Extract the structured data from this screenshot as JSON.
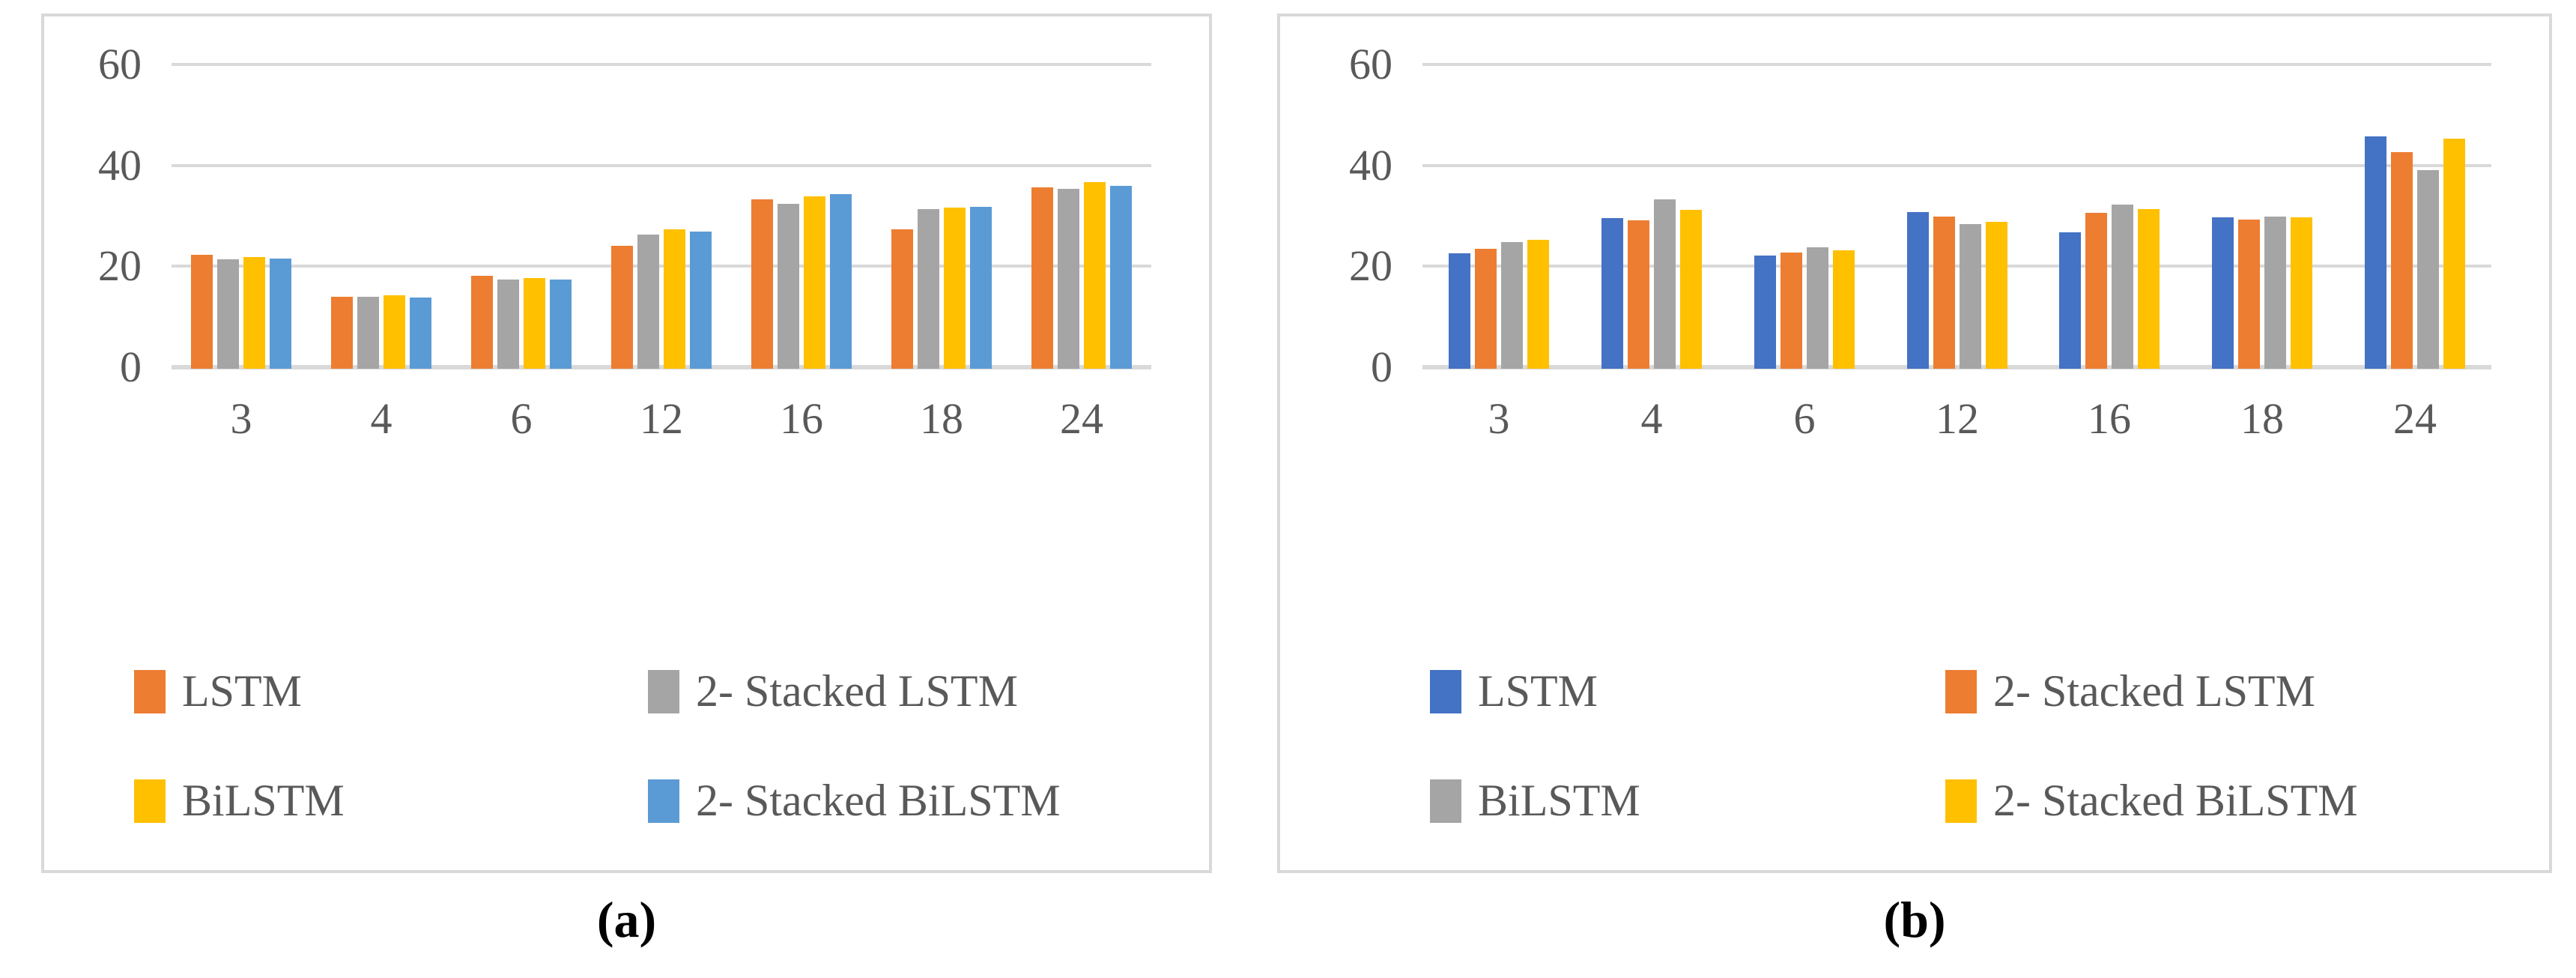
{
  "figure": {
    "background": "#FFFFFF",
    "captions": [
      "(a)",
      "(b)"
    ]
  },
  "chart_data": [
    {
      "type": "bar",
      "caption": "(a)",
      "title": "",
      "xlabel": "",
      "ylabel": "",
      "categories": [
        "3",
        "4",
        "6",
        "12",
        "16",
        "18",
        "24"
      ],
      "series": [
        {
          "name": "LSTM",
          "color": "#ED7D31",
          "values": [
            22.5,
            14.3,
            18.4,
            24.4,
            33.6,
            27.6,
            35.9
          ]
        },
        {
          "name": "2- Stacked LSTM",
          "color": "#A5A5A5",
          "values": [
            21.7,
            14.3,
            17.6,
            26.6,
            32.6,
            31.6,
            35.7
          ]
        },
        {
          "name": "BiLSTM",
          "color": "#FFC000",
          "values": [
            22.2,
            14.6,
            18.0,
            27.6,
            34.2,
            31.9,
            37.0
          ]
        },
        {
          "name": "2- Stacked BiLSTM",
          "color": "#5B9BD5",
          "values": [
            21.9,
            14.1,
            17.6,
            27.2,
            34.6,
            32.1,
            36.3
          ]
        }
      ],
      "y_ticks": [
        60,
        40,
        20,
        0
      ],
      "ylim": [
        0,
        60
      ],
      "grid": true,
      "legend_position": "bottom"
    },
    {
      "type": "bar",
      "caption": "(b)",
      "title": "",
      "xlabel": "",
      "ylabel": "",
      "categories": [
        "3",
        "4",
        "6",
        "12",
        "16",
        "18",
        "24"
      ],
      "series": [
        {
          "name": "LSTM",
          "color": "#4472C4",
          "values": [
            22.8,
            29.8,
            22.4,
            31.0,
            27.1,
            30.0,
            46.0
          ]
        },
        {
          "name": "2- Stacked LSTM",
          "color": "#ED7D31",
          "values": [
            23.8,
            29.4,
            23.0,
            30.2,
            30.9,
            29.6,
            42.9
          ]
        },
        {
          "name": "BiLSTM",
          "color": "#A5A5A5",
          "values": [
            25.1,
            33.5,
            24.0,
            28.7,
            32.5,
            30.2,
            39.4
          ]
        },
        {
          "name": "2- Stacked BiLSTM",
          "color": "#FFC000",
          "values": [
            25.6,
            31.5,
            23.4,
            29.1,
            31.7,
            30.0,
            45.6
          ]
        }
      ],
      "y_ticks": [
        60,
        40,
        20,
        0
      ],
      "ylim": [
        0,
        60
      ],
      "grid": true,
      "legend_position": "bottom"
    }
  ],
  "colors": {
    "axis_text": "#595959",
    "gridline": "#D9D9D9",
    "panel_border": "#D9D9D9",
    "caption_text": "#000000",
    "background": "#FFFFFF"
  }
}
